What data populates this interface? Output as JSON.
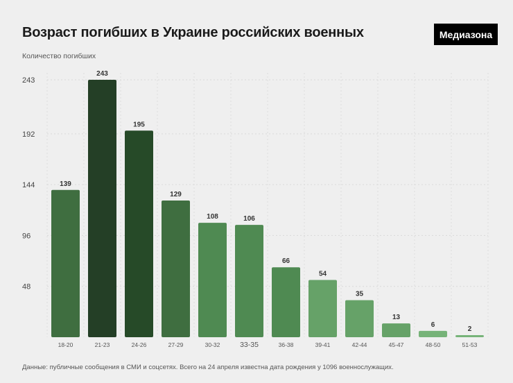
{
  "header": {
    "title": "Возраст погибших в Украине российских военных",
    "logo": "Медиазона"
  },
  "footer": {
    "source": "Данные: публичные сообщения в СМИ и соцсетях. Всего на 24 апреля известна дата рождения у 1096 военнослужащих."
  },
  "chart_data": {
    "type": "bar",
    "title": "Возраст погибших в Украине российских военных",
    "ylabel": "Количество погибших",
    "xlabel": "",
    "categories": [
      "18-20",
      "21-23",
      "24-26",
      "27-29",
      "30-32",
      "33-35",
      "36-38",
      "39-41",
      "42-44",
      "45-47",
      "48-50",
      "51-53"
    ],
    "values": [
      139,
      243,
      195,
      129,
      108,
      106,
      66,
      54,
      35,
      13,
      6,
      2
    ],
    "yticks": [
      48,
      96,
      144,
      192,
      243
    ],
    "ylim": [
      0,
      243
    ],
    "grid": true,
    "bar_colors": [
      "#3f6e40",
      "#243f26",
      "#264a28",
      "#3f6e40",
      "#4f8a52",
      "#4f8a52",
      "#4f8a52",
      "#66a268",
      "#66a268",
      "#66a268",
      "#76b378",
      "#76b378"
    ]
  }
}
